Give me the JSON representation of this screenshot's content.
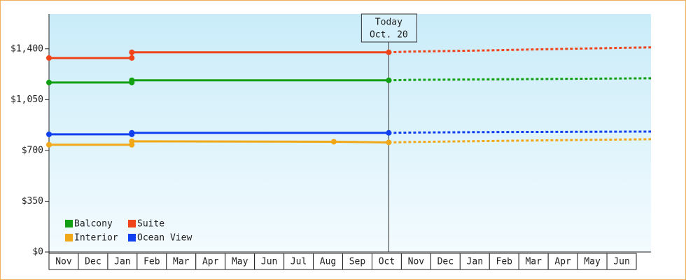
{
  "chart_data": {
    "type": "line",
    "categories": [
      "Nov",
      "Dec",
      "Jan",
      "Feb",
      "Mar",
      "Apr",
      "May",
      "Jun",
      "Jul",
      "Aug",
      "Sep",
      "Oct",
      "Nov",
      "Dec",
      "Jan",
      "Feb",
      "Mar",
      "Apr",
      "May",
      "Jun"
    ],
    "xlim": [
      0,
      20.5
    ],
    "ylim": [
      0,
      1640
    ],
    "yticks": [
      {
        "value": 0,
        "label": "$0"
      },
      {
        "value": 350,
        "label": "$350"
      },
      {
        "value": 700,
        "label": "$700"
      },
      {
        "value": 1050,
        "label": "$1,050"
      },
      {
        "value": 1400,
        "label": "$1,400"
      }
    ],
    "today": {
      "x": 11.57,
      "label": "Today",
      "date": "Oct. 20"
    },
    "series": [
      {
        "name": "Balcony",
        "color": "#12a012",
        "x": [
          0,
          2.82,
          2.82,
          11.57
        ],
        "values": [
          1168,
          1168,
          1183,
          1183
        ],
        "forecast_x": [
          11.57,
          12.3,
          14.6,
          17.6,
          20.5
        ],
        "forecast_values": [
          1183,
          1186,
          1189,
          1193,
          1197
        ]
      },
      {
        "name": "Suite",
        "color": "#f0441a",
        "x": [
          0,
          2.82,
          2.82,
          11.57
        ],
        "values": [
          1337,
          1337,
          1376,
          1376
        ],
        "forecast_x": [
          11.57,
          12.3,
          14.6,
          17.6,
          20.5
        ],
        "forecast_values": [
          1376,
          1381,
          1388,
          1400,
          1410
        ]
      },
      {
        "name": "Interior",
        "color": "#f0a818",
        "x": [
          0,
          2.82,
          2.82,
          9.7,
          11.57
        ],
        "values": [
          739,
          739,
          763,
          760,
          755
        ],
        "forecast_x": [
          11.57,
          12.3,
          14.6,
          17.6,
          20.5
        ],
        "forecast_values": [
          755,
          758,
          764,
          771,
          777
        ]
      },
      {
        "name": "Ocean View",
        "color": "#1040f0",
        "x": [
          0,
          2.82,
          2.82,
          11.57
        ],
        "values": [
          811,
          811,
          821,
          821
        ],
        "forecast_x": [
          11.57,
          12.3,
          14.6,
          17.6,
          20.5
        ],
        "forecast_values": [
          821,
          823,
          826,
          828,
          830
        ]
      }
    ]
  }
}
